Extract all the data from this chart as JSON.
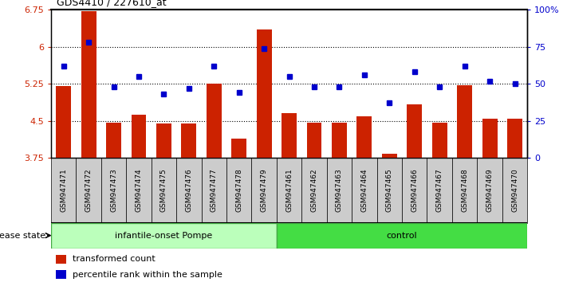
{
  "title": "GDS4410 / 227610_at",
  "samples": [
    "GSM947471",
    "GSM947472",
    "GSM947473",
    "GSM947474",
    "GSM947475",
    "GSM947476",
    "GSM947477",
    "GSM947478",
    "GSM947479",
    "GSM947461",
    "GSM947462",
    "GSM947463",
    "GSM947464",
    "GSM947465",
    "GSM947466",
    "GSM947467",
    "GSM947468",
    "GSM947469",
    "GSM947470"
  ],
  "red_values": [
    5.2,
    6.72,
    4.47,
    4.63,
    4.44,
    4.45,
    5.26,
    4.14,
    6.35,
    4.65,
    4.47,
    4.47,
    4.6,
    3.84,
    4.83,
    4.47,
    5.22,
    4.55,
    4.55
  ],
  "blue_values": [
    62,
    78,
    48,
    55,
    43,
    47,
    62,
    44,
    74,
    55,
    48,
    48,
    56,
    37,
    58,
    48,
    62,
    52,
    50
  ],
  "ylim_left": [
    3.75,
    6.75
  ],
  "ylim_right": [
    0,
    100
  ],
  "yticks_left": [
    3.75,
    4.5,
    5.25,
    6.0,
    6.75
  ],
  "yticks_right": [
    0,
    25,
    50,
    75,
    100
  ],
  "ytick_labels_left": [
    "3.75",
    "4.5",
    "5.25",
    "6",
    "6.75"
  ],
  "ytick_labels_right": [
    "0",
    "25",
    "50",
    "75",
    "100%"
  ],
  "hlines": [
    4.5,
    5.25,
    6.0
  ],
  "group1_label": "infantile-onset Pompe",
  "group2_label": "control",
  "group1_count": 9,
  "group2_count": 10,
  "disease_state_label": "disease state",
  "legend_red": "transformed count",
  "legend_blue": "percentile rank within the sample",
  "bar_color": "#cc2200",
  "dot_color": "#0000cc",
  "group1_bg": "#bbffbb",
  "group2_bg": "#44dd44",
  "tick_bg": "#cccccc",
  "bar_width": 0.6
}
